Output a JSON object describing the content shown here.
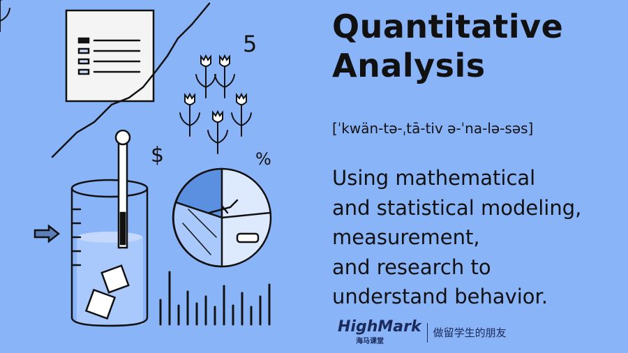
{
  "title": {
    "line1": "Quantitative",
    "line2": "Analysis"
  },
  "pronunciation": "[ˈkwän-tə-ˌtā-tiv ə-ˈna-lə-səs]",
  "definition": {
    "lines": [
      "Using mathematical",
      "and statistical modeling,",
      "measurement,",
      "and research to",
      "understand behavior."
    ]
  },
  "illustration": {
    "number": "5",
    "dollar": "$",
    "percent": "%"
  },
  "logo": {
    "brand": "HighMark",
    "brand_sub": "海马课堂",
    "slogan": "做留学生的朋友"
  },
  "colors": {
    "background": "#8ab4f8",
    "ink": "#111111",
    "water": "#a9c8fb"
  }
}
